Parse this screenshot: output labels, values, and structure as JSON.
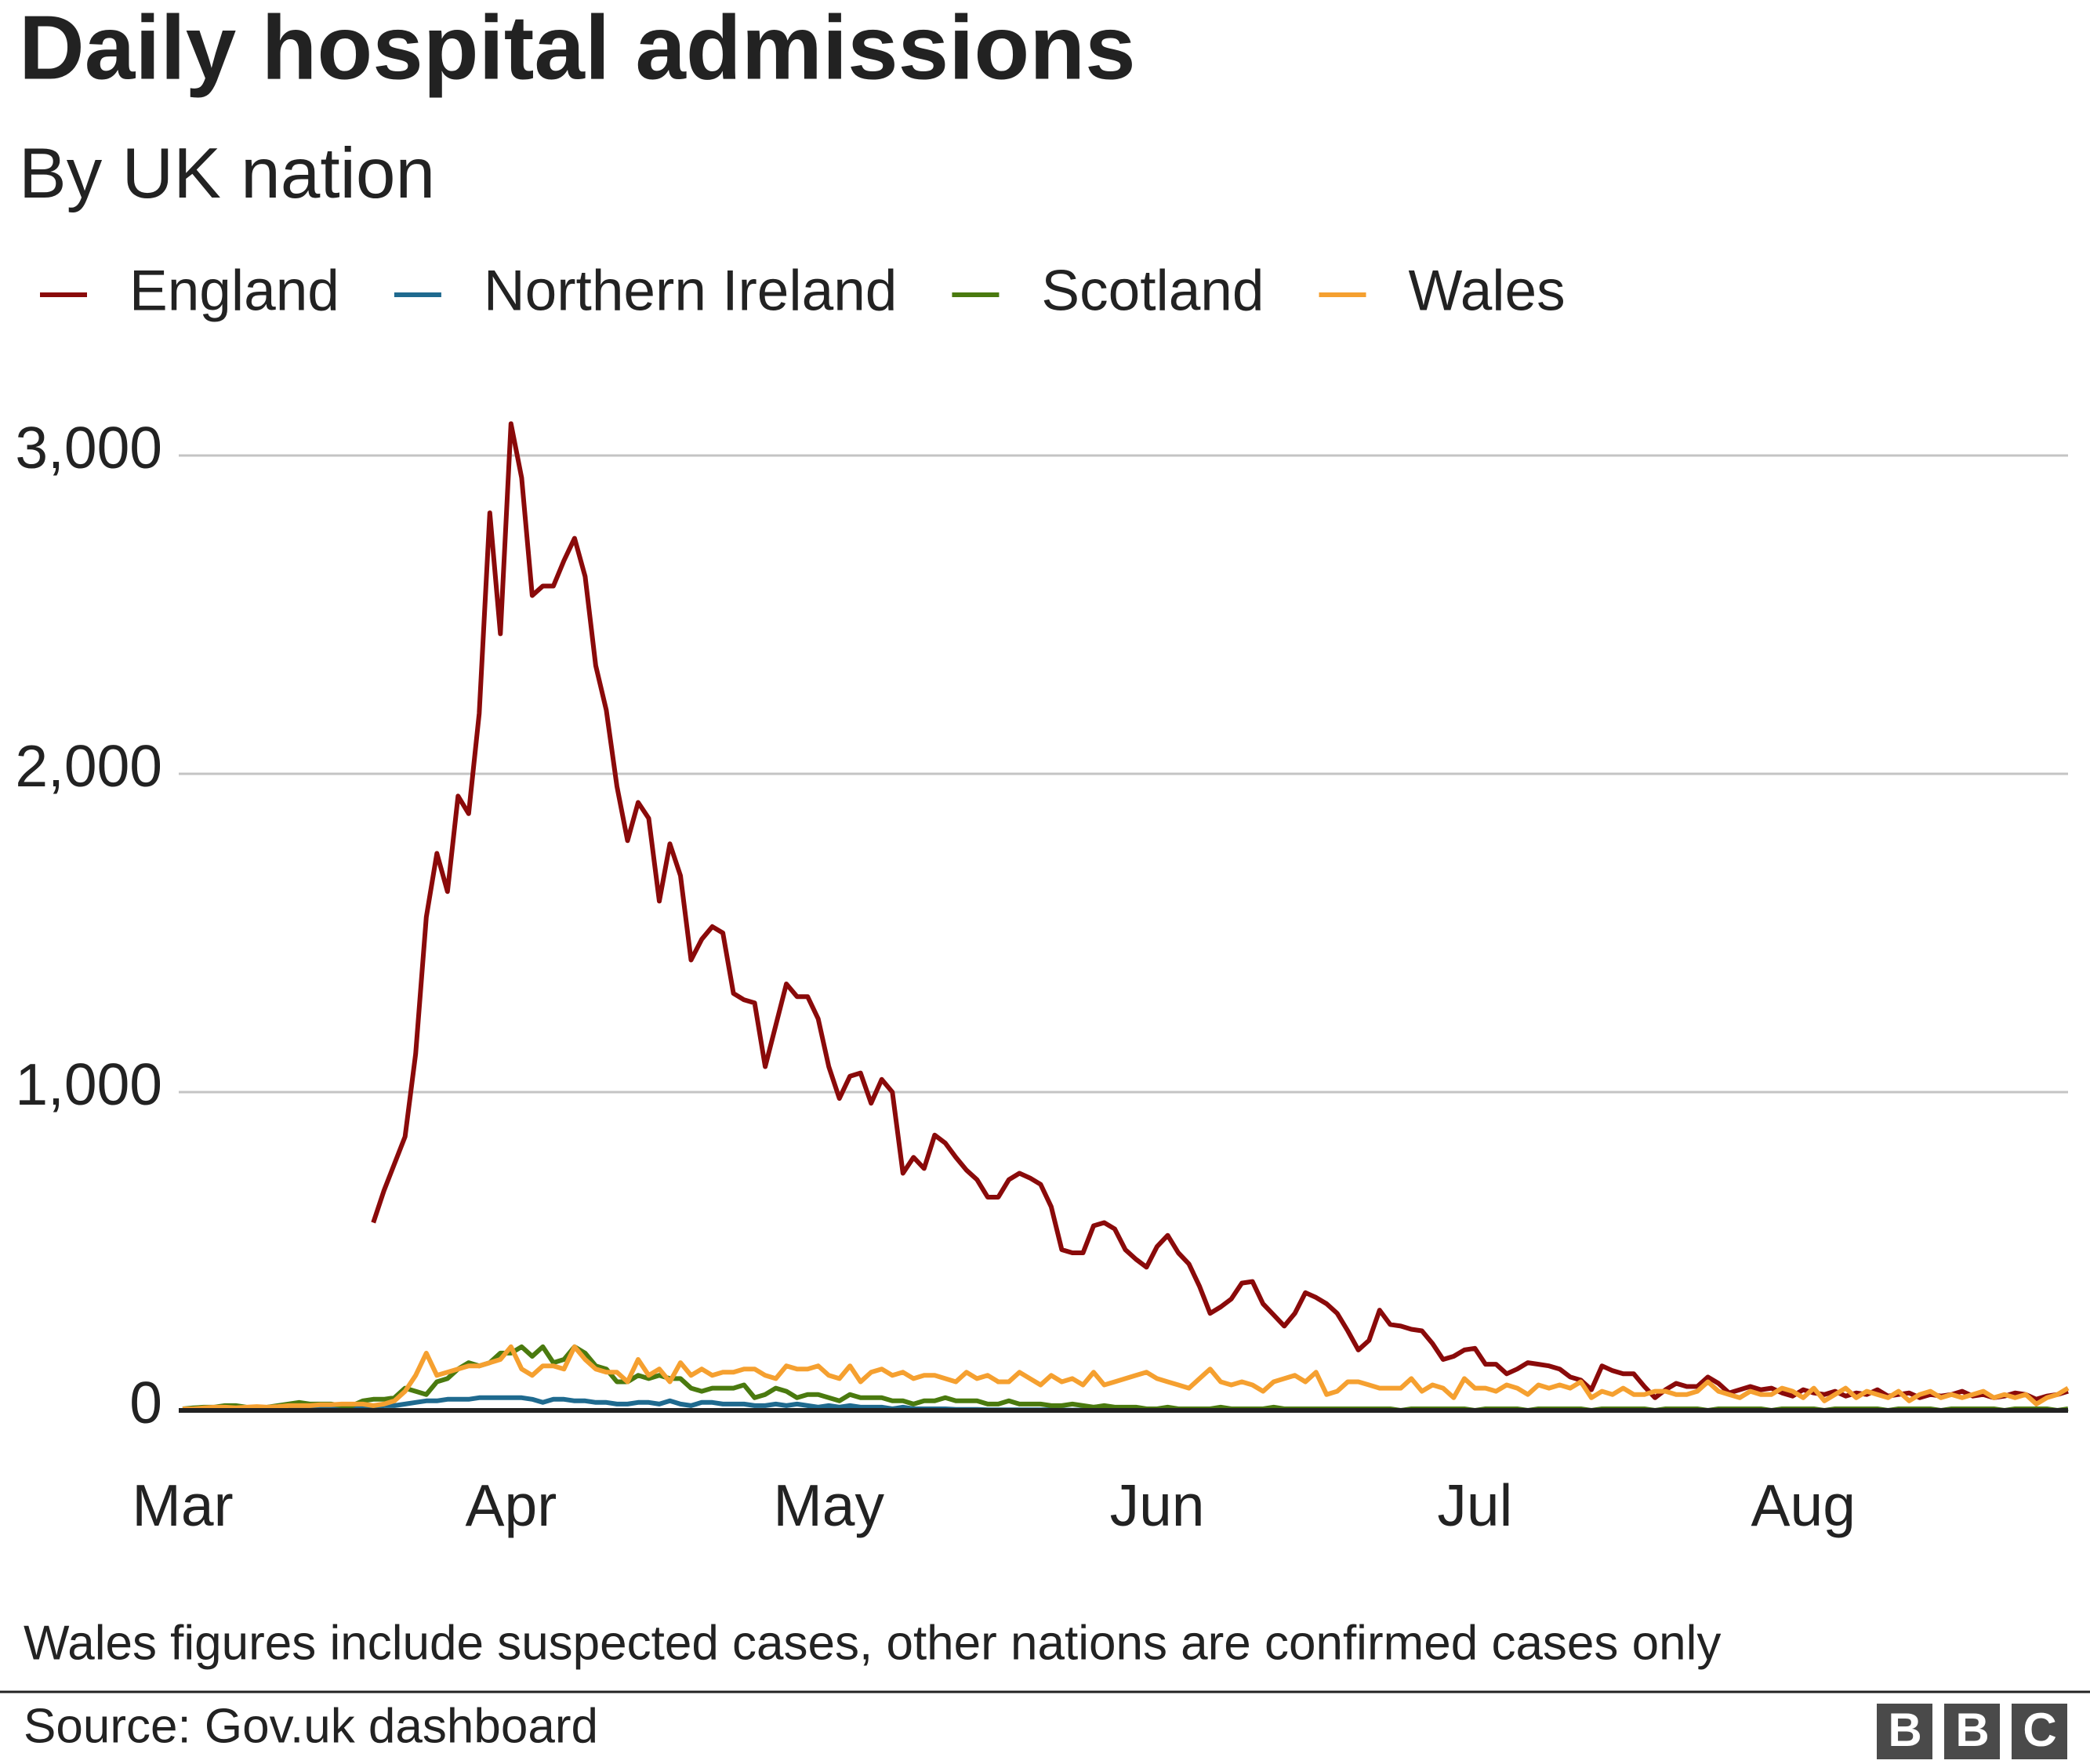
{
  "chart_data": {
    "type": "line",
    "title": "Daily hospital admissions",
    "subtitle": "By UK nation",
    "note": "Wales figures include suspected cases, other nations are confirmed cases only",
    "source": "Source: Gov.uk dashboard",
    "logo": "BBC",
    "legend": "top-left",
    "grid": true,
    "ylim": [
      0,
      3000
    ],
    "yticks": [
      0,
      {
        "value": 1000,
        "label": "1,000"
      },
      {
        "value": 2000,
        "label": "2,000"
      },
      {
        "value": 3000,
        "label": "3,000"
      }
    ],
    "categories": [
      "Mar",
      null,
      null,
      null,
      null,
      null,
      null,
      null,
      null,
      null,
      null,
      null,
      null,
      null,
      null,
      null,
      null,
      null,
      null,
      null,
      null,
      null,
      null,
      null,
      null,
      null,
      null,
      null,
      null,
      null,
      null,
      "Apr",
      null,
      null,
      null,
      null,
      null,
      null,
      null,
      null,
      null,
      null,
      null,
      null,
      null,
      null,
      null,
      null,
      null,
      null,
      null,
      null,
      null,
      null,
      null,
      null,
      null,
      null,
      null,
      null,
      null,
      "May",
      null,
      null,
      null,
      null,
      null,
      null,
      null,
      null,
      null,
      null,
      null,
      null,
      null,
      null,
      null,
      null,
      null,
      null,
      null,
      null,
      null,
      null,
      null,
      null,
      null,
      null,
      null,
      null,
      null,
      null,
      "Jun",
      null,
      null,
      null,
      null,
      null,
      null,
      null,
      null,
      null,
      null,
      null,
      null,
      null,
      null,
      null,
      null,
      null,
      null,
      null,
      null,
      null,
      null,
      null,
      null,
      null,
      null,
      null,
      null,
      null,
      "Jul",
      null,
      null,
      null,
      null,
      null,
      null,
      null,
      null,
      null,
      null,
      null,
      null,
      null,
      null,
      null,
      null,
      null,
      null,
      null,
      null,
      null,
      null,
      null,
      null,
      null,
      null,
      null,
      null,
      null,
      null,
      "Aug",
      null,
      null,
      null,
      null,
      null,
      null,
      null,
      null,
      null,
      null,
      null,
      null,
      null,
      null,
      null,
      null,
      null,
      null,
      null,
      null,
      null,
      null,
      null,
      null,
      null
    ],
    "series": [
      {
        "name": "England",
        "color": "#8a0a0a",
        "values": [
          null,
          null,
          null,
          null,
          null,
          null,
          null,
          null,
          null,
          null,
          null,
          null,
          null,
          null,
          null,
          null,
          null,
          null,
          590,
          690,
          775,
          860,
          1120,
          1550,
          1750,
          1630,
          1930,
          1875,
          2190,
          2820,
          2440,
          3100,
          2930,
          2560,
          2590,
          2590,
          2670,
          2740,
          2620,
          2340,
          2200,
          1960,
          1790,
          1910,
          1860,
          1600,
          1780,
          1680,
          1415,
          1480,
          1520,
          1500,
          1310,
          1290,
          1280,
          1080,
          1210,
          1340,
          1300,
          1300,
          1230,
          1080,
          980,
          1050,
          1060,
          965,
          1040,
          1000,
          745,
          795,
          760,
          865,
          840,
          795,
          755,
          725,
          670,
          670,
          725,
          745,
          730,
          710,
          640,
          505,
          495,
          495,
          580,
          590,
          570,
          505,
          475,
          450,
          515,
          550,
          495,
          460,
          390,
          305,
          325,
          350,
          400,
          405,
          335,
          300,
          265,
          305,
          370,
          355,
          335,
          305,
          250,
          190,
          220,
          315,
          270,
          265,
          255,
          250,
          210,
          160,
          170,
          190,
          195,
          145,
          145,
          115,
          130,
          150,
          145,
          140,
          130,
          105,
          95,
          65,
          140,
          125,
          115,
          115,
          75,
          40,
          65,
          85,
          75,
          75,
          105,
          85,
          55,
          65,
          75,
          65,
          70,
          55,
          45,
          65,
          55,
          50,
          60,
          45,
          55,
          50,
          65,
          45,
          50,
          55,
          40,
          50,
          45,
          50,
          60,
          45,
          50,
          40,
          45,
          55,
          50,
          35,
          45,
          50,
          60
        ]
      },
      {
        "name": "Northern Ireland",
        "color": "#1f6a8f",
        "values": [
          0,
          0,
          0,
          0,
          0,
          0,
          0,
          2,
          2,
          3,
          3,
          5,
          5,
          5,
          5,
          8,
          8,
          10,
          10,
          15,
          15,
          20,
          25,
          30,
          30,
          35,
          35,
          35,
          40,
          40,
          40,
          40,
          40,
          35,
          25,
          35,
          35,
          30,
          30,
          25,
          25,
          20,
          20,
          25,
          25,
          20,
          30,
          20,
          15,
          25,
          25,
          20,
          20,
          20,
          15,
          15,
          20,
          15,
          20,
          15,
          10,
          15,
          10,
          15,
          10,
          10,
          10,
          5,
          10,
          5,
          5,
          5,
          5,
          3,
          3,
          3,
          2,
          2,
          2,
          2,
          2,
          2,
          2,
          1,
          1,
          1,
          1,
          1,
          1,
          1,
          1,
          1,
          0,
          1,
          0,
          1,
          0,
          0,
          1,
          0,
          0,
          1,
          0,
          0,
          0,
          1,
          0,
          0,
          0,
          0,
          1,
          0,
          0,
          0,
          0,
          0,
          1,
          0,
          0,
          0,
          0,
          0,
          0,
          0,
          1,
          0,
          0,
          0,
          0,
          0,
          0,
          0,
          0,
          0,
          0,
          0,
          0,
          0,
          1,
          0,
          0,
          0,
          0,
          0,
          0,
          0,
          0,
          0,
          0,
          0,
          0,
          0,
          0,
          0,
          0,
          0,
          0,
          0,
          0,
          0,
          0,
          0,
          0,
          0,
          0,
          0,
          0,
          0,
          0,
          0,
          0,
          0,
          0,
          0,
          0,
          0,
          0,
          0,
          0
        ]
      },
      {
        "name": "Scotland",
        "color": "#4a7a0f",
        "values": [
          5,
          8,
          10,
          10,
          15,
          15,
          10,
          8,
          10,
          15,
          20,
          25,
          20,
          20,
          20,
          15,
          15,
          30,
          35,
          35,
          40,
          70,
          60,
          50,
          90,
          100,
          130,
          150,
          140,
          150,
          180,
          180,
          200,
          170,
          200,
          150,
          160,
          200,
          180,
          140,
          130,
          90,
          90,
          110,
          100,
          110,
          100,
          100,
          70,
          60,
          70,
          70,
          70,
          80,
          40,
          50,
          70,
          60,
          40,
          50,
          50,
          40,
          30,
          50,
          40,
          40,
          40,
          30,
          30,
          20,
          30,
          30,
          40,
          30,
          30,
          30,
          20,
          20,
          30,
          20,
          20,
          20,
          15,
          15,
          20,
          15,
          10,
          15,
          10,
          10,
          10,
          5,
          5,
          10,
          5,
          5,
          5,
          5,
          10,
          5,
          5,
          5,
          5,
          10,
          5,
          5,
          5,
          5,
          5,
          5,
          5,
          5,
          5,
          5,
          5,
          0,
          5,
          5,
          5,
          5,
          5,
          5,
          0,
          5,
          5,
          5,
          5,
          0,
          5,
          5,
          5,
          5,
          5,
          0,
          5,
          5,
          5,
          5,
          5,
          0,
          5,
          5,
          5,
          5,
          0,
          5,
          5,
          5,
          5,
          5,
          0,
          5,
          5,
          5,
          5,
          0,
          5,
          5,
          5,
          5,
          5,
          0,
          5,
          5,
          5,
          5,
          0,
          5,
          5,
          5,
          5,
          5,
          0,
          5,
          5,
          5,
          5,
          0,
          5
        ]
      },
      {
        "name": "Wales",
        "color": "#f5a030",
        "values": [
          5,
          5,
          8,
          10,
          10,
          8,
          10,
          12,
          10,
          12,
          15,
          15,
          15,
          18,
          18,
          20,
          20,
          20,
          15,
          20,
          30,
          60,
          110,
          180,
          110,
          120,
          130,
          140,
          140,
          150,
          160,
          200,
          130,
          110,
          140,
          140,
          130,
          200,
          160,
          130,
          120,
          120,
          90,
          160,
          110,
          130,
          90,
          150,
          110,
          130,
          110,
          120,
          120,
          130,
          130,
          110,
          100,
          140,
          130,
          130,
          140,
          110,
          100,
          140,
          90,
          120,
          130,
          110,
          120,
          100,
          110,
          110,
          100,
          90,
          120,
          100,
          110,
          90,
          90,
          120,
          100,
          80,
          110,
          90,
          100,
          80,
          120,
          80,
          90,
          100,
          110,
          120,
          100,
          90,
          80,
          70,
          100,
          130,
          90,
          80,
          90,
          80,
          60,
          90,
          100,
          110,
          90,
          120,
          50,
          60,
          90,
          90,
          80,
          70,
          70,
          70,
          100,
          60,
          80,
          70,
          40,
          100,
          70,
          70,
          60,
          80,
          70,
          50,
          80,
          70,
          80,
          70,
          90,
          40,
          60,
          50,
          70,
          50,
          50,
          60,
          60,
          50,
          50,
          60,
          90,
          60,
          50,
          40,
          60,
          50,
          50,
          70,
          60,
          40,
          70,
          30,
          50,
          70,
          40,
          60,
          50,
          40,
          60,
          30,
          50,
          60,
          40,
          50,
          40,
          50,
          60,
          40,
          50,
          40,
          50,
          20,
          40,
          50,
          70
        ]
      }
    ]
  }
}
